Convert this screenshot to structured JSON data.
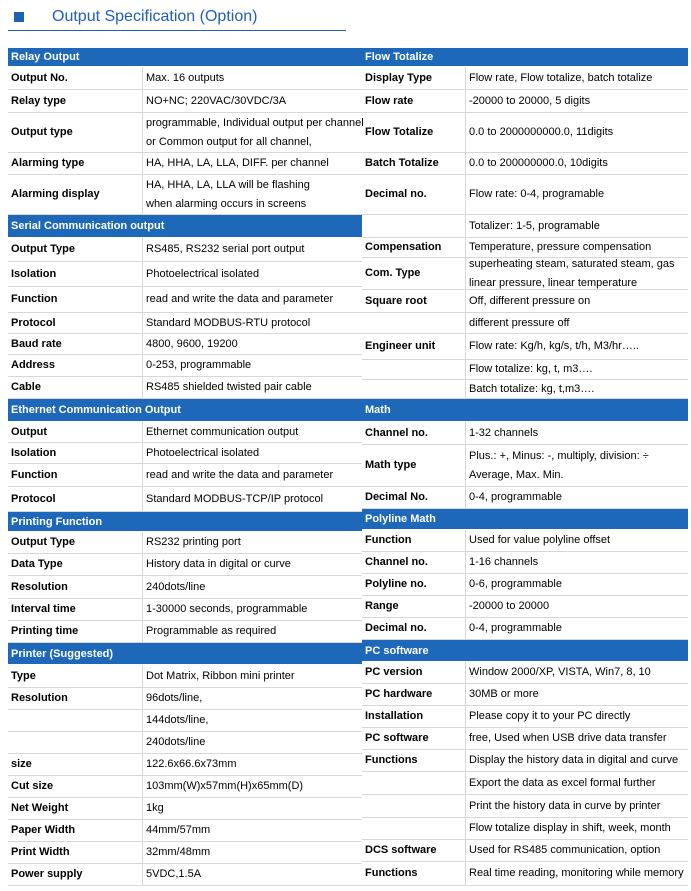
{
  "header": {
    "title": "Output Specification (Option)"
  },
  "columns": [
    {
      "sections": [
        {
          "title": "Relay Output",
          "rows": [
            {
              "label": "Output No.",
              "value": [
                "Max. 16 outputs"
              ]
            },
            {
              "label": "Relay type",
              "value": [
                "NO+NC; 220VAC/30VDC/3A"
              ]
            },
            {
              "label": "Output type",
              "value": [
                "programmable, Individual output per channel",
                "or Common output for all channel,"
              ]
            },
            {
              "label": "Alarming type",
              "value": [
                "HA, HHA, LA, LLA, DIFF. per channel"
              ]
            },
            {
              "label": "Alarming display",
              "value": [
                "HA, HHA, LA, LLA will be flashing",
                "when alarming occurs in screens"
              ]
            }
          ]
        },
        {
          "title": "Serial Communication output",
          "rows": [
            {
              "label": "Output Type",
              "value": [
                "RS485, RS232 serial port output"
              ]
            },
            {
              "label": "Isolation",
              "value": [
                "Photoelectrical isolated"
              ]
            },
            {
              "label": "Function",
              "value": [
                "read and write the data and parameter"
              ]
            },
            {
              "label": "Protocol",
              "value": [
                "Standard MODBUS-RTU protocol"
              ]
            },
            {
              "label": "Baud rate",
              "value": [
                "4800, 9600, 19200"
              ]
            },
            {
              "label": "Address",
              "value": [
                "0-253, programmable"
              ]
            },
            {
              "label": "Cable",
              "value": [
                "RS485 shielded twisted pair cable"
              ]
            }
          ]
        },
        {
          "title": "Ethernet Communication Output",
          "rows": [
            {
              "label": "Output",
              "value": [
                "Ethernet communication output"
              ]
            },
            {
              "label": "Isolation",
              "value": [
                "Photoelectrical isolated"
              ]
            },
            {
              "label": "Function",
              "value": [
                "read and write the data and parameter"
              ]
            },
            {
              "label": "Protocol",
              "value": [
                "Standard MODBUS-TCP/IP protocol"
              ]
            }
          ]
        },
        {
          "title": "Printing Function",
          "rows": [
            {
              "label": "Output Type",
              "value": [
                "RS232 printing port"
              ]
            },
            {
              "label": "Data Type",
              "value": [
                "History data in digital or curve"
              ]
            },
            {
              "label": "Resolution",
              "value": [
                "240dots/line"
              ]
            },
            {
              "label": "Interval time",
              "value": [
                "1-30000 seconds, programmable"
              ]
            },
            {
              "label": "Printing time",
              "value": [
                "Programmable as required"
              ]
            }
          ]
        },
        {
          "title": "Printer (Suggested)",
          "rows": [
            {
              "label": "Type",
              "value": [
                "Dot Matrix, Ribbon mini printer"
              ]
            },
            {
              "label": "Resolution",
              "value": [
                "96dots/line,"
              ]
            },
            {
              "value": [
                "144dots/line,"
              ]
            },
            {
              "value": [
                "240dots/line"
              ]
            },
            {
              "label": "size",
              "value": [
                "122.6x66.6x73mm"
              ]
            },
            {
              "label": "Cut size",
              "value": [
                "103mm(W)x57mm(H)x65mm(D)"
              ]
            },
            {
              "label": "Net Weight",
              "value": [
                "1kg"
              ]
            },
            {
              "label": "Paper Width",
              "value": [
                "44mm/57mm"
              ]
            },
            {
              "label": "Print Width",
              "value": [
                "32mm/48mm"
              ]
            },
            {
              "label": "Power supply",
              "value": [
                "5VDC,1.5A"
              ]
            }
          ]
        }
      ]
    },
    {
      "sections": [
        {
          "title": "Flow Totalize",
          "rows": [
            {
              "label": "Display Type",
              "value": [
                "Flow rate, Flow totalize, batch totalize"
              ]
            },
            {
              "label": "Flow rate",
              "value": [
                "-20000 to 20000, 5 digits"
              ]
            },
            {
              "label": "Flow Totalize",
              "value": [
                "0.0 to 2000000000.0, 11digits"
              ]
            },
            {
              "label": "Batch Totalize",
              "value": [
                "0.0 to 200000000.0, 10digits"
              ]
            },
            {
              "label": "Decimal no.",
              "value": [
                "Flow rate: 0-4, programable"
              ]
            },
            {
              "value": [
                "Totalizer: 1-5, programable"
              ]
            },
            {
              "label": "Compensation",
              "value": [
                "Temperature, pressure compensation"
              ]
            },
            {
              "label": "Com. Type",
              "value": [
                "superheating steam, saturated steam, gas",
                "linear pressure, linear temperature"
              ]
            },
            {
              "label": "Square root",
              "value": [
                "Off, different pressure on"
              ]
            },
            {
              "value": [
                "different pressure off"
              ]
            },
            {
              "label": "Engineer unit",
              "value": [
                "Flow rate: Kg/h, kg/s, t/h, M3/hr….."
              ]
            },
            {
              "value": [
                "Flow totalize: kg, t, m3…."
              ]
            },
            {
              "value": [
                "Batch totalize: kg, t,m3…."
              ]
            }
          ]
        },
        {
          "title": "Math",
          "rows": [
            {
              "label": "Channel no.",
              "value": [
                "1-32 channels"
              ]
            },
            {
              "label": "Math type",
              "value": [
                "Plus.: +, Minus: -, multiply, division: ÷",
                "Average, Max. Min."
              ]
            },
            {
              "label": "Decimal No.",
              "value": [
                "0-4, programmable"
              ]
            }
          ]
        },
        {
          "title": "Polyline Math",
          "rows": [
            {
              "label": "Function",
              "value": [
                "Used for value polyline offset"
              ]
            },
            {
              "label": "Channel no.",
              "value": [
                "1-16 channels"
              ]
            },
            {
              "label": "Polyline no.",
              "value": [
                "0-6, programmable"
              ]
            },
            {
              "label": "Range",
              "value": [
                "-20000 to 20000"
              ]
            },
            {
              "label": "Decimal no.",
              "value": [
                "0-4, programmable"
              ]
            }
          ]
        },
        {
          "title": "PC software",
          "rows": [
            {
              "label": "PC version",
              "value": [
                "Window 2000/XP, VISTA, Win7, 8, 10"
              ]
            },
            {
              "label": "PC hardware",
              "value": [
                "30MB or more"
              ]
            },
            {
              "label": "Installation",
              "value": [
                "Please copy it to your PC directly"
              ]
            },
            {
              "label": "PC software",
              "value": [
                "free, Used when USB drive data transfer"
              ]
            },
            {
              "label": "Functions",
              "value": [
                "Display the history data in digital and curve"
              ]
            },
            {
              "value": [
                "Export the data as excel formal further"
              ]
            },
            {
              "value": [
                "Print the history data in curve by printer"
              ]
            },
            {
              "value": [
                "Flow totalize display in shift, week, month"
              ]
            },
            {
              "label": "DCS software",
              "value": [
                "Used for RS485 communication, option"
              ]
            },
            {
              "label": "Functions",
              "value": [
                "Real time reading, monitoring while memory"
              ]
            }
          ]
        }
      ]
    }
  ]
}
